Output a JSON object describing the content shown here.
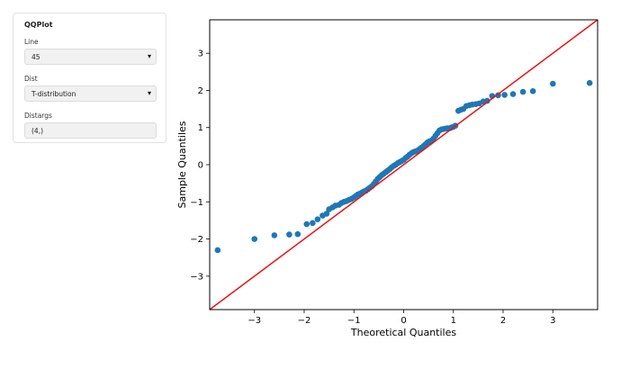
{
  "panel": {
    "title": "QQPlot",
    "line_label": "Line",
    "line_value": "45",
    "dist_label": "Dist",
    "dist_value": "T-distribution",
    "distargs_label": "Distargs",
    "distargs_value": "(4,)"
  },
  "chart_data": {
    "type": "scatter",
    "title": "",
    "xlabel": "Theoretical Quantiles",
    "ylabel": "Sample Quantiles",
    "xlim": [
      -3.9,
      3.9
    ],
    "ylim": [
      -3.9,
      3.9
    ],
    "xticks": [
      -3,
      -2,
      -1,
      0,
      1,
      2,
      3
    ],
    "yticks": [
      -3,
      -2,
      -1,
      0,
      1,
      2,
      3
    ],
    "reference_line": {
      "type": "45-degree",
      "color": "#ee1111"
    },
    "point_color": "#1f77b4",
    "x": [
      -3.74,
      -3.0,
      -2.6,
      -2.3,
      -2.13,
      -1.95,
      -1.83,
      -1.73,
      -1.63,
      -1.55,
      -1.5,
      -1.43,
      -1.37,
      -1.3,
      -1.25,
      -1.2,
      -1.15,
      -1.1,
      -1.05,
      -1.0,
      -0.96,
      -0.92,
      -0.88,
      -0.84,
      -0.8,
      -0.76,
      -0.72,
      -0.68,
      -0.64,
      -0.6,
      -0.56,
      -0.52,
      -0.48,
      -0.44,
      -0.4,
      -0.36,
      -0.32,
      -0.28,
      -0.24,
      -0.2,
      -0.16,
      -0.12,
      -0.08,
      -0.04,
      0.0,
      0.04,
      0.08,
      0.12,
      0.16,
      0.2,
      0.24,
      0.28,
      0.32,
      0.36,
      0.4,
      0.44,
      0.48,
      0.52,
      0.56,
      0.6,
      0.64,
      0.68,
      0.72,
      0.76,
      0.8,
      0.84,
      0.88,
      0.92,
      0.96,
      1.0,
      1.04,
      1.1,
      1.15,
      1.2,
      1.26,
      1.32,
      1.38,
      1.45,
      1.52,
      1.6,
      1.68,
      1.78,
      1.9,
      2.03,
      2.2,
      2.4,
      2.6,
      3.0,
      3.74
    ],
    "y": [
      -2.3,
      -2.0,
      -1.9,
      -1.88,
      -1.87,
      -1.6,
      -1.57,
      -1.47,
      -1.37,
      -1.32,
      -1.2,
      -1.15,
      -1.1,
      -1.08,
      -1.03,
      -1.0,
      -0.98,
      -0.95,
      -0.92,
      -0.88,
      -0.84,
      -0.8,
      -0.78,
      -0.75,
      -0.72,
      -0.7,
      -0.66,
      -0.62,
      -0.58,
      -0.52,
      -0.45,
      -0.38,
      -0.33,
      -0.28,
      -0.24,
      -0.2,
      -0.16,
      -0.12,
      -0.07,
      -0.03,
      0.0,
      0.04,
      0.07,
      0.1,
      0.13,
      0.18,
      0.22,
      0.27,
      0.31,
      0.34,
      0.36,
      0.38,
      0.42,
      0.46,
      0.5,
      0.55,
      0.6,
      0.63,
      0.65,
      0.7,
      0.78,
      0.85,
      0.92,
      0.95,
      0.96,
      0.97,
      0.98,
      0.98,
      1.0,
      1.02,
      1.05,
      1.45,
      1.48,
      1.5,
      1.58,
      1.6,
      1.62,
      1.63,
      1.65,
      1.7,
      1.72,
      1.85,
      1.87,
      1.88,
      1.9,
      1.96,
      1.98,
      2.18,
      2.2
    ]
  }
}
